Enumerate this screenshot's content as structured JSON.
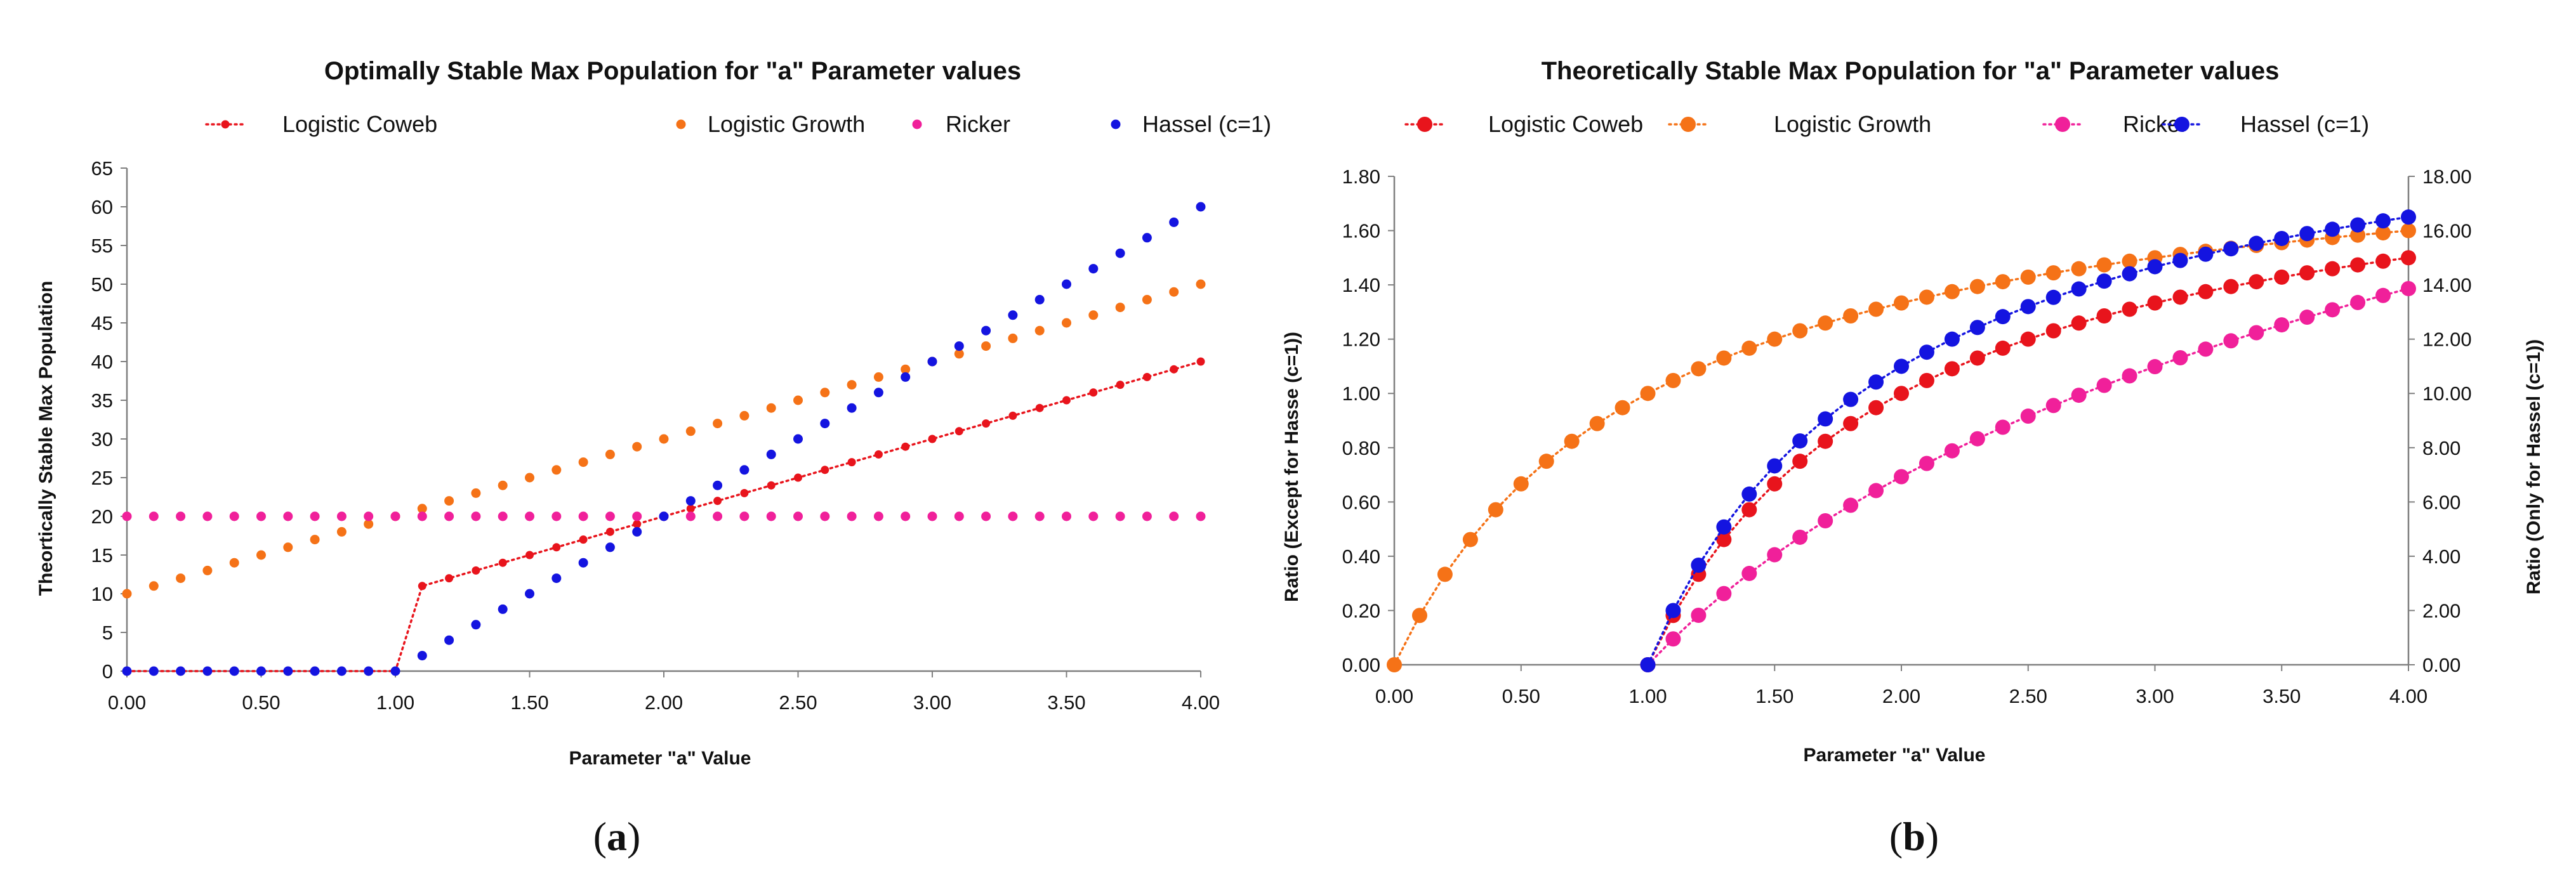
{
  "chart_data": [
    {
      "type": "scatter",
      "panel": "(a)",
      "title": "Optimally Stable Max Population for \"a\" Parameter values",
      "xlabel": "Parameter \"a\" Value",
      "ylabel": "Theortically Stable Max Population",
      "xlim": [
        0,
        4
      ],
      "ylim": [
        0,
        65
      ],
      "xticks": [
        "0.00",
        "0.50",
        "1.00",
        "1.50",
        "2.00",
        "2.50",
        "3.00",
        "3.50",
        "4.00"
      ],
      "yticks": [
        "0",
        "5",
        "10",
        "15",
        "20",
        "25",
        "30",
        "35",
        "40",
        "45",
        "50",
        "55",
        "60",
        "65"
      ],
      "legend_position": "top",
      "grid": false,
      "x": [
        0,
        0.1,
        0.2,
        0.3,
        0.4,
        0.5,
        0.6,
        0.7,
        0.8,
        0.9,
        1.0,
        1.1,
        1.2,
        1.3,
        1.4,
        1.5,
        1.6,
        1.7,
        1.8,
        1.9,
        2.0,
        2.1,
        2.2,
        2.3,
        2.4,
        2.5,
        2.6,
        2.7,
        2.8,
        2.9,
        3.0,
        3.1,
        3.2,
        3.3,
        3.4,
        3.5,
        3.6,
        3.7,
        3.8,
        3.9,
        4.0
      ],
      "series": [
        {
          "name": "Logistic Coweb",
          "color": "#e8141c",
          "style": "dotted-line-small-markers",
          "values": [
            0,
            0,
            0,
            0,
            0,
            0,
            0,
            0,
            0,
            0,
            0,
            11,
            12,
            13,
            14,
            15,
            16,
            17,
            18,
            19,
            20,
            21,
            22,
            23,
            24,
            25,
            26,
            27,
            28,
            29,
            30,
            31,
            32,
            33,
            34,
            35,
            36,
            37,
            38,
            39,
            40
          ]
        },
        {
          "name": "Logistic Growth",
          "color": "#f57217",
          "style": "markers",
          "values": [
            10,
            11,
            12,
            13,
            14,
            15,
            16,
            17,
            18,
            19,
            20,
            21,
            22,
            23,
            24,
            25,
            26,
            27,
            28,
            29,
            30,
            31,
            32,
            33,
            34,
            35,
            36,
            37,
            38,
            39,
            40,
            41,
            42,
            43,
            44,
            45,
            46,
            47,
            48,
            49,
            50
          ]
        },
        {
          "name": "Ricker",
          "color": "#f0209a",
          "style": "markers",
          "values": [
            20,
            20,
            20,
            20,
            20,
            20,
            20,
            20,
            20,
            20,
            20,
            20,
            20,
            20,
            20,
            20,
            20,
            20,
            20,
            20,
            20,
            20,
            20,
            20,
            20,
            20,
            20,
            20,
            20,
            20,
            20,
            20,
            20,
            20,
            20,
            20,
            20,
            20,
            20,
            20,
            20
          ]
        },
        {
          "name": "Hassel (c=1)",
          "color": "#1414e0",
          "style": "markers",
          "values": [
            0,
            0,
            0,
            0,
            0,
            0,
            0,
            0,
            0,
            0,
            0,
            2,
            4,
            6,
            8,
            10,
            12,
            14,
            16,
            18,
            20,
            22,
            24,
            26,
            28,
            30,
            32,
            34,
            36,
            38,
            40,
            42,
            44,
            46,
            48,
            50,
            52,
            54,
            56,
            58,
            60
          ]
        }
      ]
    },
    {
      "type": "scatter",
      "panel": "(b)",
      "title": "Theoretically Stable Max Population for \"a\" Parameter values",
      "xlabel": "Parameter \"a\" Value",
      "ylabel": "Ratio (Except for Hasse (c=1))",
      "y2label": "Ratio (Only for Hassel (c=1))",
      "xlim": [
        0,
        4
      ],
      "ylim": [
        0,
        1.8
      ],
      "y2lim": [
        0,
        18
      ],
      "xticks": [
        "0.00",
        "0.50",
        "1.00",
        "1.50",
        "2.00",
        "2.50",
        "3.00",
        "3.50",
        "4.00"
      ],
      "yticks": [
        "0.00",
        "0.20",
        "0.40",
        "0.60",
        "0.80",
        "1.00",
        "1.20",
        "1.40",
        "1.60",
        "1.80"
      ],
      "y2ticks": [
        "0.00",
        "2.00",
        "4.00",
        "6.00",
        "8.00",
        "10.00",
        "12.00",
        "14.00",
        "16.00",
        "18.00"
      ],
      "legend_position": "top",
      "grid": false,
      "x": [
        0,
        0.1,
        0.2,
        0.3,
        0.4,
        0.5,
        0.6,
        0.7,
        0.8,
        0.9,
        1.0,
        1.1,
        1.2,
        1.3,
        1.4,
        1.5,
        1.6,
        1.7,
        1.8,
        1.9,
        2.0,
        2.1,
        2.2,
        2.3,
        2.4,
        2.5,
        2.6,
        2.7,
        2.8,
        2.9,
        3.0,
        3.1,
        3.2,
        3.3,
        3.4,
        3.5,
        3.6,
        3.7,
        3.8,
        3.9,
        4.0
      ],
      "series": [
        {
          "name": "Logistic Coweb",
          "color": "#e8141c",
          "axis": "left",
          "start_x": 1.0,
          "values": [
            0,
            0.1818,
            0.3333,
            0.4615,
            0.5714,
            0.6667,
            0.75,
            0.8235,
            0.8889,
            0.9474,
            1.0,
            1.0476,
            1.0909,
            1.1304,
            1.1667,
            1.2,
            1.2308,
            1.2593,
            1.2857,
            1.3103,
            1.3333,
            1.3548,
            1.375,
            1.3939,
            1.4118,
            1.4286,
            1.4444,
            1.4595,
            1.4737,
            1.4872,
            1.5
          ]
        },
        {
          "name": "Logistic Growth",
          "color": "#f57217",
          "axis": "left",
          "start_x": 0.0,
          "values": [
            0,
            0.1818,
            0.3333,
            0.4615,
            0.5714,
            0.6667,
            0.75,
            0.8235,
            0.8889,
            0.9474,
            1.0,
            1.0476,
            1.0909,
            1.1304,
            1.1667,
            1.2,
            1.2308,
            1.2593,
            1.2857,
            1.3103,
            1.3333,
            1.3548,
            1.375,
            1.3939,
            1.4118,
            1.4286,
            1.4444,
            1.4595,
            1.4737,
            1.4872,
            1.5,
            1.5122,
            1.5238,
            1.5349,
            1.5455,
            1.5556,
            1.5652,
            1.5745,
            1.5833,
            1.5918,
            1.6
          ]
        },
        {
          "name": "Ricker",
          "color": "#f0209a",
          "axis": "left",
          "start_x": 1.0,
          "values": [
            0,
            0.0953,
            0.1823,
            0.2624,
            0.3365,
            0.4055,
            0.47,
            0.5306,
            0.5878,
            0.6419,
            0.6931,
            0.7419,
            0.7885,
            0.8329,
            0.8755,
            0.9163,
            0.9555,
            0.9933,
            1.0296,
            1.0647,
            1.0986,
            1.1314,
            1.1632,
            1.1939,
            1.2238,
            1.2528,
            1.2809,
            1.3083,
            1.335,
            1.361,
            1.3863
          ]
        },
        {
          "name": "Hassel (c=1)",
          "color": "#1414e0",
          "axis": "right",
          "start_x": 1.0,
          "values": [
            0,
            2.0,
            3.67,
            5.08,
            6.29,
            7.33,
            8.25,
            9.06,
            9.78,
            10.42,
            11.0,
            11.52,
            12.0,
            12.43,
            12.83,
            13.2,
            13.54,
            13.85,
            14.14,
            14.41,
            14.67,
            14.9,
            15.13,
            15.33,
            15.53,
            15.71,
            15.89,
            16.05,
            16.21,
            16.36,
            16.5
          ]
        }
      ]
    }
  ]
}
